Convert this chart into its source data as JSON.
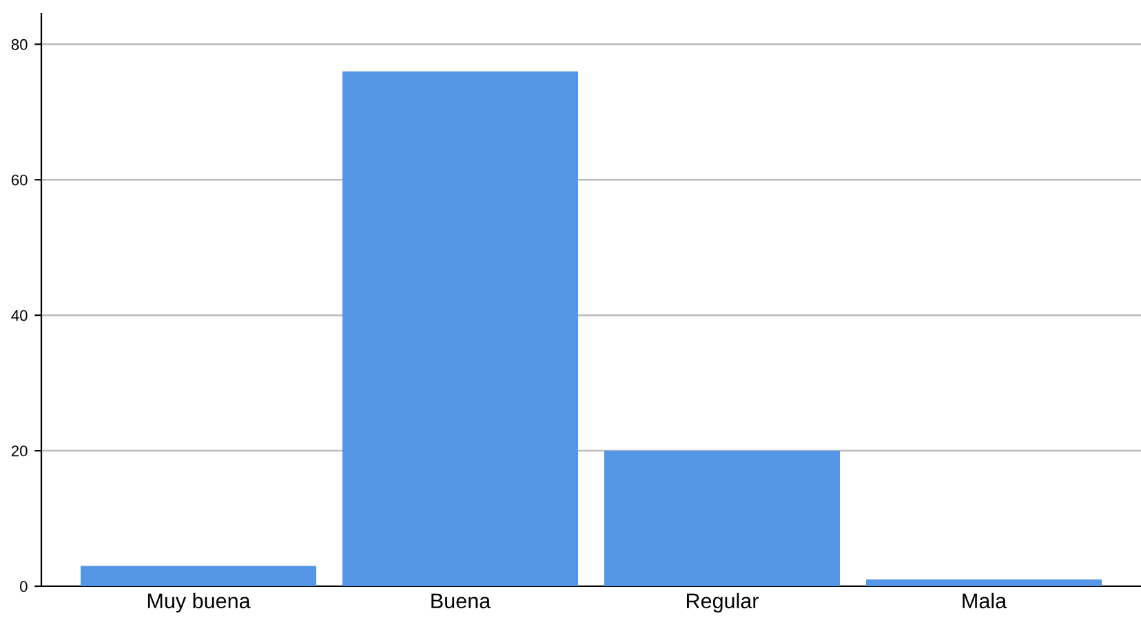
{
  "chart_data": {
    "type": "bar",
    "categories": [
      "Muy buena",
      "Buena",
      "Regular",
      "Mala"
    ],
    "values": [
      3,
      76,
      20,
      1
    ],
    "color": "#5596e6",
    "ylim": [
      0,
      84.5
    ],
    "yticks": [
      0,
      20,
      40,
      60,
      80
    ],
    "grid": "y"
  }
}
